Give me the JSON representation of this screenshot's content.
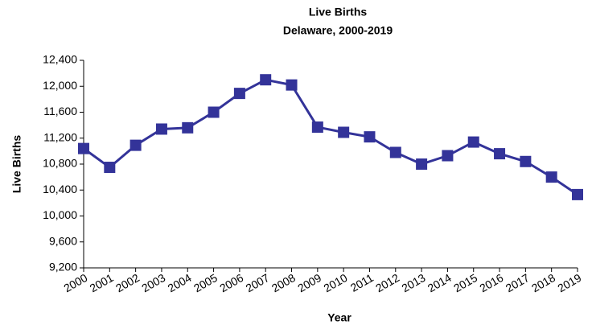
{
  "chart_data": {
    "type": "line",
    "title": "Live Births",
    "subtitle": "Delaware, 2000-2019",
    "x_label": "Year",
    "y_label": "Live Births",
    "categories": [
      "2000",
      "2001",
      "2002",
      "2003",
      "2004",
      "2005",
      "2006",
      "2007",
      "2008",
      "2009",
      "2010",
      "2011",
      "2012",
      "2013",
      "2014",
      "2015",
      "2016",
      "2017",
      "2018",
      "2019"
    ],
    "series": [
      {
        "name": "Live Births",
        "color": "#333399",
        "values": [
          11040,
          10750,
          11090,
          11340,
          11360,
          11600,
          11890,
          12100,
          12020,
          11370,
          11290,
          11220,
          10980,
          10800,
          10930,
          11140,
          10960,
          10840,
          10600,
          10330
        ]
      }
    ],
    "ylim": [
      9200,
      12400
    ],
    "yticks": [
      {
        "value": 9200,
        "label": "9,200"
      },
      {
        "value": 9600,
        "label": "9,600"
      },
      {
        "value": 10000,
        "label": "10,000"
      },
      {
        "value": 10400,
        "label": "10,400"
      },
      {
        "value": 10800,
        "label": "10,800"
      },
      {
        "value": 11200,
        "label": "11,200"
      },
      {
        "value": 11600,
        "label": "11,600"
      },
      {
        "value": 12000,
        "label": "12,000"
      },
      {
        "value": 12400,
        "label": "12,400"
      }
    ],
    "grid": false,
    "legend": false
  }
}
